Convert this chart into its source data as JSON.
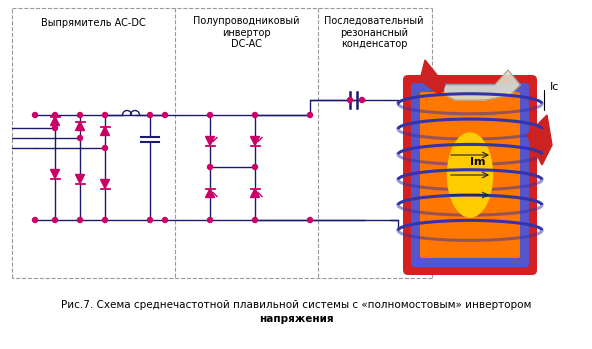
{
  "bg_color": "#ffffff",
  "line_color": "#1a1a6e",
  "node_color": "#cc0066",
  "diode_color": "#cc0066",
  "coil_color": "#3333aa",
  "title": "Рис.7. Схема среднечастотной плавильной системы с «полномостовым» инвертором",
  "title2": "напряжения",
  "label1": "Выпрямитель AC-DC",
  "label2": "Полупроводниковый\nинвертор\nDC-AC",
  "label3": "Последовательный\nрезонансный\nконденсатор",
  "label_Im": "Im",
  "label_Ic": "Ic"
}
